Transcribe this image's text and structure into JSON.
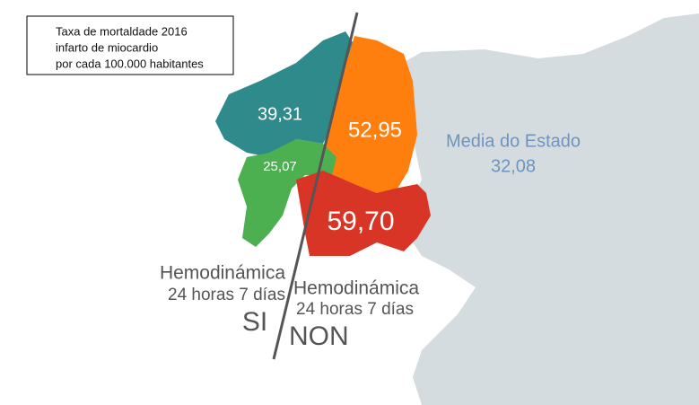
{
  "legend": {
    "lines": [
      "Taxa de mortaldade 2016",
      "infarto de miocardio",
      "por cada 100.000 habitantes"
    ]
  },
  "regions": [
    {
      "label": "39,31"
    },
    {
      "label": "52,95"
    },
    {
      "label": "25,07"
    },
    {
      "label": "59,70"
    }
  ],
  "state_average": {
    "title": "Media do Estado",
    "value": "32,08"
  },
  "left": {
    "title": "Hemodinámica",
    "subtitle": "24 horas 7 días",
    "answer": "SI"
  },
  "right": {
    "title": "Hemodinámica",
    "subtitle": "24 horas 7 días",
    "answer": "NON"
  }
}
